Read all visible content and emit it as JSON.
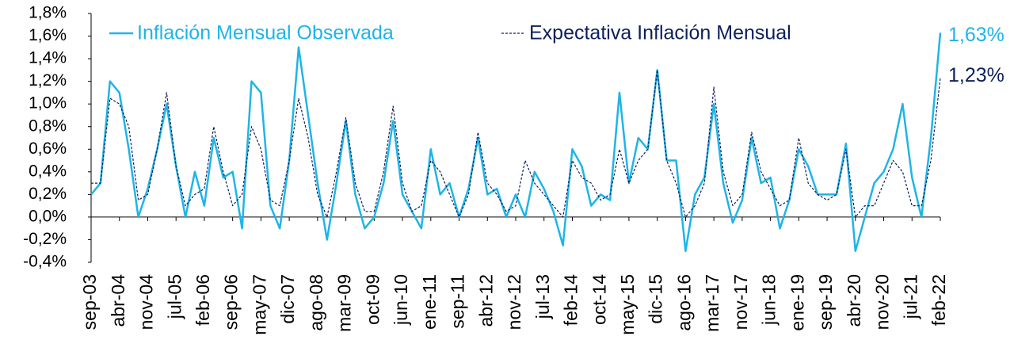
{
  "chart_data": {
    "type": "line",
    "categories": [
      "sep-03",
      null,
      null,
      "abr-04",
      null,
      null,
      "nov-04",
      null,
      null,
      "jul-05",
      null,
      null,
      "feb-06",
      null,
      null,
      "sep-06",
      null,
      null,
      "may-07",
      null,
      null,
      "dic-07",
      null,
      null,
      "ago-08",
      null,
      null,
      "mar-09",
      null,
      null,
      "oct-09",
      null,
      null,
      "jun-10",
      null,
      null,
      "ene-11",
      null,
      null,
      "sep-11",
      null,
      null,
      "abr-12",
      null,
      null,
      "nov-12",
      null,
      null,
      "jul-13",
      null,
      null,
      "feb-14",
      null,
      null,
      "oct-14",
      null,
      null,
      "may-15",
      null,
      null,
      "dic-15",
      null,
      null,
      "ago-16",
      null,
      null,
      "mar-17",
      null,
      null,
      "nov-17",
      null,
      null,
      "jun-18",
      null,
      null,
      "ene-19",
      null,
      null,
      "sep-19",
      null,
      null,
      "abr-20",
      null,
      null,
      "nov-20",
      null,
      null,
      "jul-21",
      null,
      null,
      "feb-22"
    ],
    "series": [
      {
        "name": "Inflación Mensual Observada",
        "color": "#1fb4e8",
        "dash": false,
        "values": [
          0.2,
          0.3,
          1.2,
          1.1,
          0.6,
          0.0,
          0.25,
          0.6,
          1.0,
          0.45,
          0.0,
          0.4,
          0.1,
          0.7,
          0.35,
          0.4,
          -0.1,
          1.2,
          1.1,
          0.1,
          -0.1,
          0.5,
          1.5,
          0.9,
          0.3,
          -0.2,
          0.3,
          0.85,
          0.2,
          -0.1,
          0.0,
          0.3,
          0.85,
          0.2,
          0.05,
          -0.1,
          0.6,
          0.2,
          0.3,
          0.0,
          0.25,
          0.7,
          0.2,
          0.25,
          0.0,
          0.2,
          0.0,
          0.4,
          0.25,
          0.05,
          -0.25,
          0.6,
          0.45,
          0.1,
          0.2,
          0.15,
          1.1,
          0.3,
          0.7,
          0.6,
          1.3,
          0.5,
          0.5,
          -0.3,
          0.2,
          0.35,
          1.0,
          0.3,
          -0.05,
          0.15,
          0.7,
          0.3,
          0.35,
          -0.1,
          0.15,
          0.6,
          0.45,
          0.2,
          0.2,
          0.2,
          0.65,
          -0.3,
          0.0,
          0.3,
          0.4,
          0.6,
          1.0,
          0.35,
          0.0,
          0.7,
          1.63
        ],
        "value_labels": [
          null,
          null,
          null,
          null,
          null,
          null,
          null,
          null,
          null,
          null,
          null,
          null,
          null,
          null,
          null,
          null,
          null,
          null,
          null,
          null,
          null,
          null,
          null,
          null,
          null,
          null,
          null,
          null,
          null,
          null,
          null,
          null,
          null,
          null,
          null,
          null,
          null,
          null,
          null,
          null,
          null,
          null,
          null,
          null,
          null,
          null,
          null,
          null,
          null,
          null,
          null,
          null,
          null,
          null,
          null,
          null,
          null,
          null,
          null,
          null,
          null,
          null,
          null,
          null,
          null,
          null,
          null,
          null,
          null,
          null,
          null,
          null,
          null,
          null,
          null,
          null,
          null,
          null,
          null,
          null,
          null,
          null,
          null,
          null,
          null,
          null,
          null,
          null,
          null,
          null,
          "1,63%"
        ]
      },
      {
        "name": "Expectativa Inflación Mensual",
        "color": "#0d1f5c",
        "dash": true,
        "values": [
          0.3,
          0.3,
          1.05,
          1.0,
          0.8,
          0.15,
          0.2,
          0.6,
          1.1,
          0.45,
          0.1,
          0.2,
          0.25,
          0.8,
          0.4,
          0.1,
          0.2,
          0.8,
          0.6,
          0.15,
          0.1,
          0.5,
          1.05,
          0.7,
          0.2,
          0.0,
          0.4,
          0.88,
          0.3,
          0.05,
          0.05,
          0.4,
          0.98,
          0.3,
          0.05,
          0.1,
          0.5,
          0.4,
          0.2,
          0.0,
          0.2,
          0.75,
          0.3,
          0.2,
          0.05,
          0.1,
          0.5,
          0.3,
          0.2,
          0.1,
          0.0,
          0.5,
          0.35,
          0.3,
          0.15,
          0.2,
          0.6,
          0.3,
          0.5,
          0.6,
          1.3,
          0.5,
          0.3,
          0.0,
          0.1,
          0.3,
          1.15,
          0.4,
          0.1,
          0.2,
          0.75,
          0.4,
          0.25,
          0.1,
          0.15,
          0.7,
          0.3,
          0.2,
          0.15,
          0.2,
          0.6,
          0.0,
          0.1,
          0.1,
          0.3,
          0.5,
          0.4,
          0.1,
          0.1,
          0.5,
          1.23
        ],
        "value_labels": [
          null,
          null,
          null,
          null,
          null,
          null,
          null,
          null,
          null,
          null,
          null,
          null,
          null,
          null,
          null,
          null,
          null,
          null,
          null,
          null,
          null,
          null,
          null,
          null,
          null,
          null,
          null,
          null,
          null,
          null,
          null,
          null,
          null,
          null,
          null,
          null,
          null,
          null,
          null,
          null,
          null,
          null,
          null,
          null,
          null,
          null,
          null,
          null,
          null,
          null,
          null,
          null,
          null,
          null,
          null,
          null,
          null,
          null,
          null,
          null,
          null,
          null,
          null,
          null,
          null,
          null,
          null,
          null,
          null,
          null,
          null,
          null,
          null,
          null,
          null,
          null,
          null,
          null,
          null,
          null,
          null,
          null,
          null,
          null,
          null,
          null,
          null,
          null,
          null,
          null,
          "1,23%"
        ]
      }
    ],
    "ylim": [
      -0.4,
      1.8
    ],
    "yticks": [
      {
        "value": -0.4,
        "label": "-0,4%"
      },
      {
        "value": -0.2,
        "label": "-0,2%"
      },
      {
        "value": 0,
        "label": "0,0%"
      },
      {
        "value": 0.2,
        "label": "0,2%"
      },
      {
        "value": 0.4,
        "label": "0,4%"
      },
      {
        "value": 0.6,
        "label": "0,6%"
      },
      {
        "value": 0.8,
        "label": "0,8%"
      },
      {
        "value": 1.0,
        "label": "1,0%"
      },
      {
        "value": 1.2,
        "label": "1,2%"
      },
      {
        "value": 1.4,
        "label": "1,4%"
      },
      {
        "value": 1.6,
        "label": "1,6%"
      },
      {
        "value": 1.8,
        "label": "1,8%"
      }
    ],
    "grid": false
  }
}
